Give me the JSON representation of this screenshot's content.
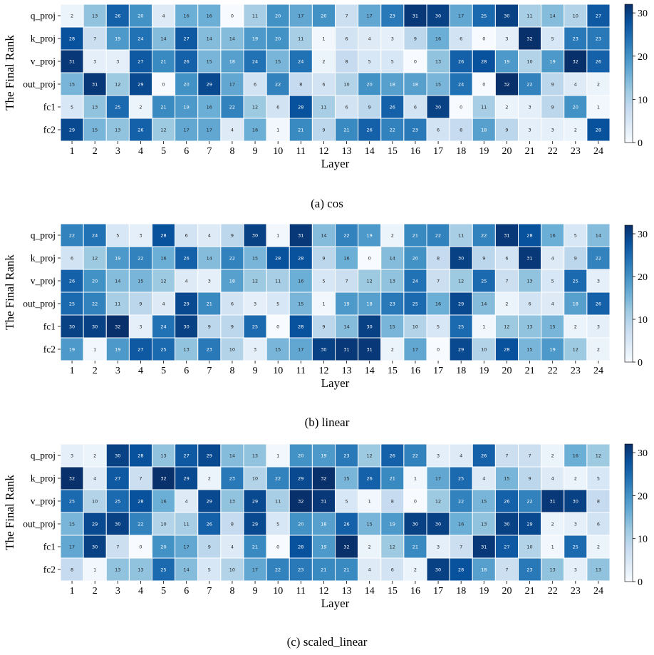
{
  "figure": {
    "ylabel": "The Final Rank",
    "xlabel": "Layer",
    "colormap": {
      "low": "#f7fbff",
      "mid": "#6baed6",
      "high": "#08306b"
    }
  },
  "chart_data": [
    {
      "type": "heatmap",
      "caption": "(a) cos",
      "rows": [
        "q_proj",
        "k_proj",
        "v_proj",
        "out_proj",
        "fc1",
        "fc2"
      ],
      "cols": [
        "1",
        "2",
        "3",
        "4",
        "5",
        "6",
        "7",
        "8",
        "9",
        "10",
        "11",
        "12",
        "13",
        "14",
        "15",
        "16",
        "17",
        "18",
        "19",
        "20",
        "21",
        "22",
        "23",
        "24"
      ],
      "values": [
        [
          2,
          13,
          26,
          20,
          4,
          16,
          16,
          0,
          11,
          20,
          17,
          20,
          7,
          17,
          23,
          31,
          30,
          17,
          25,
          30,
          11,
          14,
          10,
          27
        ],
        [
          28,
          7,
          19,
          24,
          14,
          27,
          14,
          14,
          19,
          20,
          11,
          1,
          6,
          4,
          3,
          9,
          16,
          6,
          0,
          3,
          32,
          5,
          23,
          23
        ],
        [
          31,
          3,
          3,
          27,
          21,
          26,
          15,
          18,
          24,
          15,
          24,
          2,
          8,
          5,
          5,
          0,
          13,
          26,
          28,
          19,
          10,
          19,
          32,
          26
        ],
        [
          15,
          31,
          12,
          29,
          0,
          20,
          29,
          17,
          6,
          22,
          8,
          6,
          10,
          20,
          18,
          18,
          15,
          24,
          0,
          32,
          22,
          9,
          4,
          2
        ],
        [
          5,
          13,
          25,
          2,
          21,
          19,
          16,
          22,
          12,
          6,
          28,
          11,
          6,
          9,
          26,
          6,
          30,
          0,
          11,
          2,
          3,
          9,
          20,
          1
        ],
        [
          29,
          15,
          13,
          26,
          12,
          17,
          17,
          4,
          16,
          1,
          21,
          9,
          21,
          26,
          22,
          23,
          6,
          8,
          18,
          9,
          3,
          3,
          2,
          28
        ]
      ],
      "vmin": 0,
      "vmax": 32,
      "colorbar_ticks": [
        "0",
        "10",
        "20",
        "30"
      ],
      "xlabel": "Layer",
      "ylabel": "The Final Rank"
    },
    {
      "type": "heatmap",
      "caption": "(b) linear",
      "rows": [
        "q_proj",
        "k_proj",
        "v_proj",
        "out_proj",
        "fc1",
        "fc2"
      ],
      "cols": [
        "1",
        "2",
        "3",
        "4",
        "5",
        "6",
        "7",
        "8",
        "9",
        "10",
        "11",
        "12",
        "13",
        "14",
        "15",
        "16",
        "17",
        "18",
        "19",
        "20",
        "21",
        "22",
        "23",
        "24"
      ],
      "values": [
        [
          22,
          24,
          5,
          3,
          28,
          6,
          4,
          9,
          30,
          1,
          31,
          14,
          22,
          19,
          2,
          21,
          22,
          11,
          22,
          31,
          28,
          16,
          5,
          14
        ],
        [
          6,
          12,
          19,
          22,
          16,
          26,
          14,
          22,
          15,
          28,
          28,
          9,
          16,
          0,
          14,
          20,
          8,
          30,
          9,
          6,
          31,
          4,
          9,
          22
        ],
        [
          26,
          20,
          14,
          15,
          12,
          4,
          3,
          18,
          12,
          11,
          16,
          5,
          7,
          12,
          13,
          24,
          7,
          12,
          25,
          7,
          13,
          5,
          25,
          3
        ],
        [
          25,
          22,
          11,
          9,
          4,
          29,
          21,
          6,
          3,
          5,
          15,
          1,
          19,
          18,
          23,
          25,
          16,
          29,
          14,
          2,
          6,
          4,
          18,
          26
        ],
        [
          30,
          30,
          32,
          3,
          24,
          30,
          9,
          9,
          25,
          0,
          28,
          9,
          14,
          30,
          15,
          10,
          5,
          25,
          1,
          12,
          13,
          15,
          2,
          3
        ],
        [
          19,
          1,
          19,
          27,
          25,
          13,
          23,
          10,
          3,
          15,
          17,
          30,
          31,
          31,
          2,
          17,
          0,
          29,
          10,
          28,
          15,
          19,
          12,
          2
        ]
      ],
      "vmin": 0,
      "vmax": 32,
      "colorbar_ticks": [
        "0",
        "10",
        "20",
        "30"
      ],
      "xlabel": "Layer",
      "ylabel": "The Final Rank"
    },
    {
      "type": "heatmap",
      "caption": "(c) scaled_linear",
      "rows": [
        "q_proj",
        "k_proj",
        "v_proj",
        "out_proj",
        "fc1",
        "fc2"
      ],
      "cols": [
        "1",
        "2",
        "3",
        "4",
        "5",
        "6",
        "7",
        "8",
        "9",
        "10",
        "11",
        "12",
        "13",
        "14",
        "15",
        "16",
        "17",
        "18",
        "19",
        "20",
        "21",
        "22",
        "23",
        "24"
      ],
      "values": [
        [
          3,
          2,
          30,
          28,
          13,
          27,
          29,
          14,
          13,
          1,
          20,
          19,
          23,
          12,
          26,
          22,
          3,
          4,
          26,
          7,
          7,
          2,
          16,
          12
        ],
        [
          32,
          4,
          27,
          7,
          32,
          29,
          2,
          23,
          10,
          22,
          29,
          32,
          15,
          26,
          21,
          1,
          17,
          25,
          4,
          15,
          9,
          4,
          2,
          5
        ],
        [
          25,
          10,
          25,
          28,
          16,
          4,
          29,
          13,
          29,
          11,
          32,
          31,
          5,
          1,
          8,
          0,
          12,
          22,
          15,
          26,
          22,
          31,
          30,
          8
        ],
        [
          15,
          29,
          30,
          22,
          10,
          11,
          26,
          8,
          29,
          5,
          20,
          18,
          26,
          15,
          19,
          30,
          30,
          16,
          13,
          30,
          29,
          2,
          3,
          6
        ],
        [
          17,
          30,
          7,
          0,
          20,
          17,
          9,
          4,
          21,
          0,
          28,
          19,
          32,
          2,
          12,
          21,
          3,
          7,
          31,
          27,
          10,
          1,
          25,
          2
        ],
        [
          8,
          1,
          13,
          13,
          25,
          14,
          5,
          10,
          17,
          22,
          23,
          21,
          21,
          4,
          6,
          2,
          30,
          28,
          18,
          7,
          23,
          13,
          3,
          13
        ]
      ],
      "vmin": 0,
      "vmax": 32,
      "colorbar_ticks": [
        "0",
        "10",
        "20",
        "30"
      ],
      "xlabel": "Layer",
      "ylabel": "The Final Rank"
    }
  ]
}
